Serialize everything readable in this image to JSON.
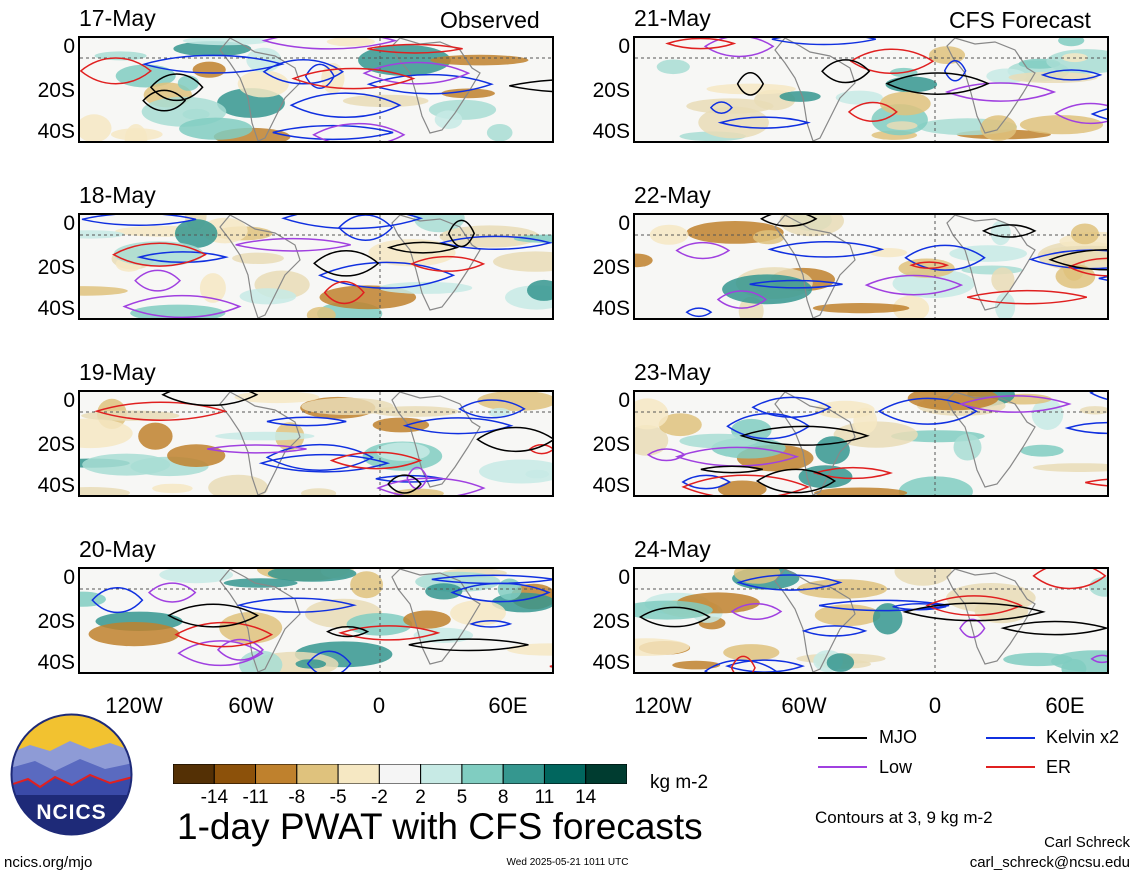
{
  "title": "1-day PWAT with CFS forecasts",
  "left_column": {
    "header": "Observed",
    "dates": [
      "17-May",
      "18-May",
      "19-May",
      "20-May"
    ]
  },
  "right_column": {
    "header": "CFS Forecast",
    "dates": [
      "21-May",
      "22-May",
      "23-May",
      "24-May"
    ]
  },
  "y_ticks": [
    "0",
    "20S",
    "40S"
  ],
  "x_ticks": [
    "120W",
    "60W",
    "0",
    "60E"
  ],
  "legend": [
    {
      "label": "MJO",
      "color": "#000000"
    },
    {
      "label": "Kelvin x2",
      "color": "#1030e0"
    },
    {
      "label": "Low",
      "color": "#a040e0"
    },
    {
      "label": "ER",
      "color": "#e02020"
    }
  ],
  "colorbar": {
    "unit": "kg m-2",
    "labels": [
      "-14",
      "-11",
      "-8",
      "-5",
      "-2",
      "2",
      "5",
      "8",
      "11",
      "14"
    ],
    "colors": [
      "#543005",
      "#8c510a",
      "#bf812d",
      "#dfc27d",
      "#f6e8c3",
      "#f5f5f5",
      "#c7eae5",
      "#80cdc1",
      "#35978f",
      "#01665e",
      "#003c30"
    ]
  },
  "contours_note": "Contours at 3, 9 kg m-2",
  "logo_text": "NCICS",
  "footer": {
    "url": "ncics.org/mjo",
    "timestamp": "Wed 2025-05-21 1011 UTC",
    "author": "Carl Schreck",
    "email": "carl_schreck@ncsu.edu"
  }
}
